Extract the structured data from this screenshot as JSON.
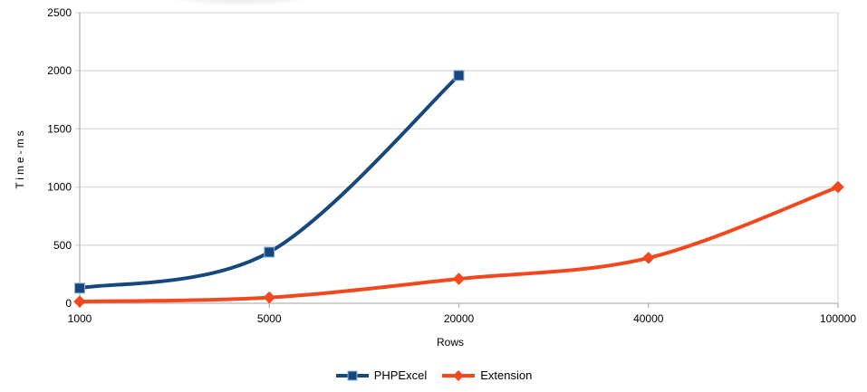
{
  "chart_data": {
    "type": "line",
    "title": "",
    "xlabel": "Rows",
    "ylabel": "Time-ms",
    "categories": [
      "1000",
      "5000",
      "20000",
      "40000",
      "100000"
    ],
    "y_ticks": [
      0,
      500,
      1000,
      1500,
      2000,
      2500
    ],
    "ylim": [
      0,
      2500
    ],
    "grid": "horizontal",
    "line_style": "smooth",
    "legend_position": "bottom-center",
    "series": [
      {
        "name": "PHPExcel",
        "color": "#17487d",
        "marker": "square",
        "marker_edge": "#8eb4d9",
        "values": [
          130,
          440,
          1960,
          null,
          null
        ]
      },
      {
        "name": "Extension",
        "color": "#f4471d",
        "marker": "diamond",
        "marker_edge": "#f4471d",
        "values": [
          15,
          50,
          210,
          390,
          1000
        ]
      }
    ]
  },
  "colors": {
    "background": "#ffffff",
    "gridline": "#d9d9d9",
    "axis": "#b3b3b3",
    "text": "#000000"
  }
}
